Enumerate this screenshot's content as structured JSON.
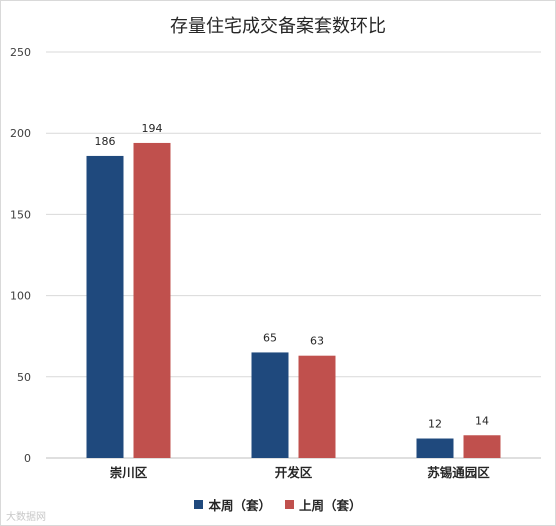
{
  "chart_data": {
    "type": "bar",
    "title": "存量住宅成交备案套数环比",
    "categories": [
      "崇川区",
      "开发区",
      "苏锡通园区"
    ],
    "series": [
      {
        "name": "本周（套）",
        "values": [
          186,
          65,
          12
        ],
        "color": "#1f497d"
      },
      {
        "name": "上周（套）",
        "values": [
          194,
          63,
          14
        ],
        "color": "#c0504d"
      }
    ],
    "ylim": [
      0,
      250
    ],
    "yticks": [
      0,
      50,
      100,
      150,
      200,
      250
    ],
    "grid": true,
    "legend_position": "bottom"
  },
  "watermark": "大数据网"
}
